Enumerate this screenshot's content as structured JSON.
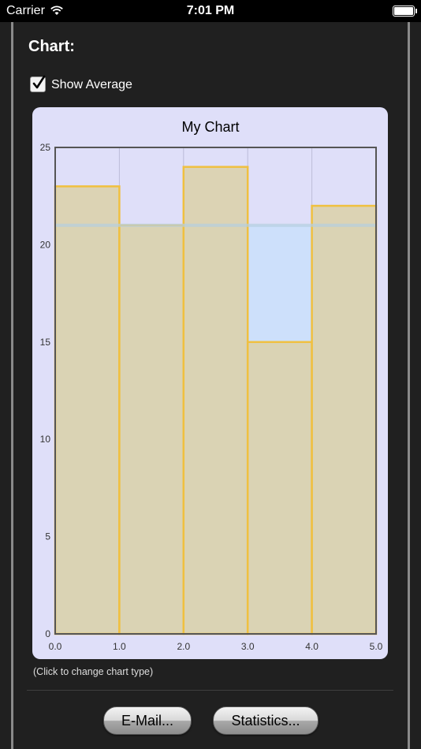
{
  "status_bar": {
    "carrier": "Carrier",
    "time": "7:01 PM"
  },
  "section_title": "Chart:",
  "show_average": {
    "label": "Show Average",
    "checked": true
  },
  "chart_data": {
    "type": "bar",
    "title": "My Chart",
    "categories": [
      "0.0–1.0",
      "1.0–2.0",
      "2.0–3.0",
      "3.0–4.0",
      "4.0–5.0"
    ],
    "x_ticks": [
      "0.0",
      "1.0",
      "2.0",
      "3.0",
      "4.0",
      "5.0"
    ],
    "y_ticks": [
      "0",
      "5",
      "10",
      "15",
      "20",
      "25"
    ],
    "values": [
      23,
      21,
      24,
      15,
      22
    ],
    "average": 21,
    "xlim": [
      0,
      5
    ],
    "ylim": [
      0,
      25
    ],
    "grid": true,
    "colors": {
      "bar_fill": "#dcd2ac",
      "bar_edge": "#f0c040",
      "average_fill": "#cde0fb",
      "average_line": "#b5cfe0",
      "plot_bg": "#dfdff9",
      "grid": "#bcbcd8",
      "axis": "#555555"
    }
  },
  "hint": "(Click to change chart type)",
  "buttons": {
    "email": "E-Mail...",
    "statistics": "Statistics..."
  }
}
